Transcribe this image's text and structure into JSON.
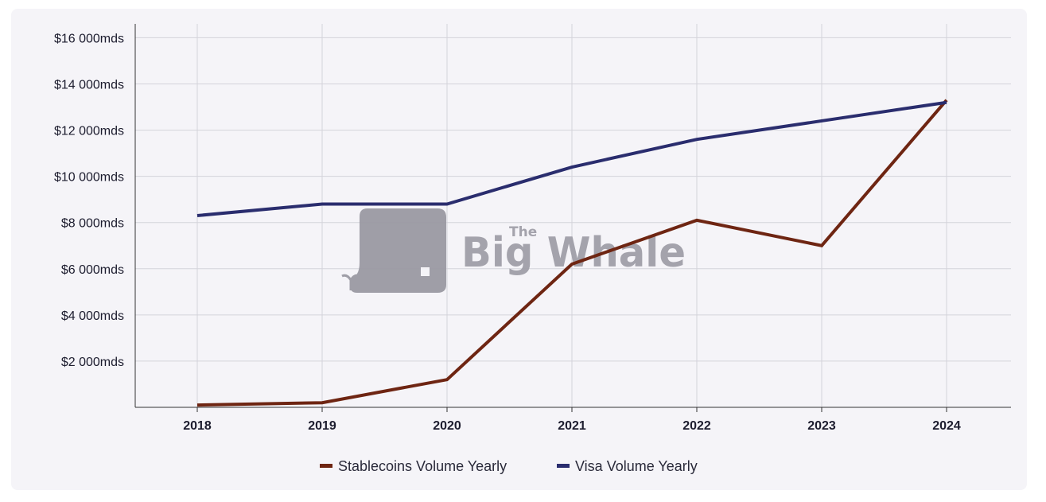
{
  "chart_data": {
    "type": "line",
    "categories": [
      "2018",
      "2019",
      "2020",
      "2021",
      "2022",
      "2023",
      "2024"
    ],
    "series": [
      {
        "name": "Stablecoins Volume Yearly",
        "color": "#6e2512",
        "values": [
          100,
          200,
          1200,
          6200,
          8100,
          7000,
          13300
        ]
      },
      {
        "name": "Visa Volume Yearly",
        "color": "#2a2d6e",
        "values": [
          8300,
          8800,
          8800,
          10400,
          11600,
          12400,
          13200
        ]
      }
    ],
    "y_ticks": [
      {
        "value": 2000,
        "label": "$2 000mds"
      },
      {
        "value": 4000,
        "label": "$4 000mds"
      },
      {
        "value": 6000,
        "label": "$6 000mds"
      },
      {
        "value": 8000,
        "label": "$8 000mds"
      },
      {
        "value": 10000,
        "label": "$10 000mds"
      },
      {
        "value": 12000,
        "label": "$12 000mds"
      },
      {
        "value": 14000,
        "label": "$14 000mds"
      },
      {
        "value": 16000,
        "label": "$16 000mds"
      }
    ],
    "ylim": [
      0,
      16600
    ],
    "grid": true,
    "legend_position": "bottom-center",
    "watermark": {
      "line1": "The",
      "line2": "Big Whale"
    }
  }
}
